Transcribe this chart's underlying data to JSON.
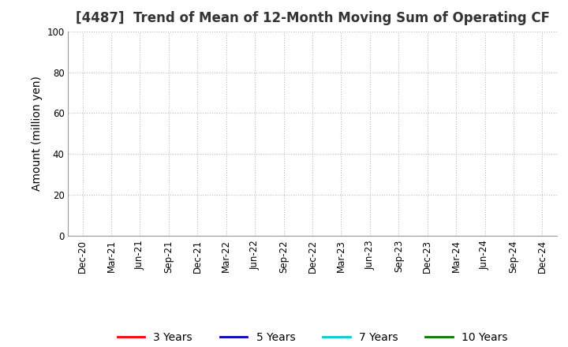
{
  "title": "[4487]  Trend of Mean of 12-Month Moving Sum of Operating CF",
  "ylabel": "Amount (million yen)",
  "ylim": [
    0,
    100
  ],
  "yticks": [
    0,
    20,
    40,
    60,
    80,
    100
  ],
  "x_labels": [
    "Dec-20",
    "Mar-21",
    "Jun-21",
    "Sep-21",
    "Dec-21",
    "Mar-22",
    "Jun-22",
    "Sep-22",
    "Dec-22",
    "Mar-23",
    "Jun-23",
    "Sep-23",
    "Dec-23",
    "Mar-24",
    "Jun-24",
    "Sep-24",
    "Dec-24"
  ],
  "legend_entries": [
    {
      "label": "3 Years",
      "color": "#ff0000"
    },
    {
      "label": "5 Years",
      "color": "#0000bb"
    },
    {
      "label": "7 Years",
      "color": "#00cccc"
    },
    {
      "label": "10 Years",
      "color": "#007700"
    }
  ],
  "background_color": "#ffffff",
  "grid_color": "#bbbbbb",
  "title_fontsize": 12,
  "axis_label_fontsize": 10,
  "tick_fontsize": 8.5,
  "legend_fontsize": 10,
  "title_color": "#333333"
}
